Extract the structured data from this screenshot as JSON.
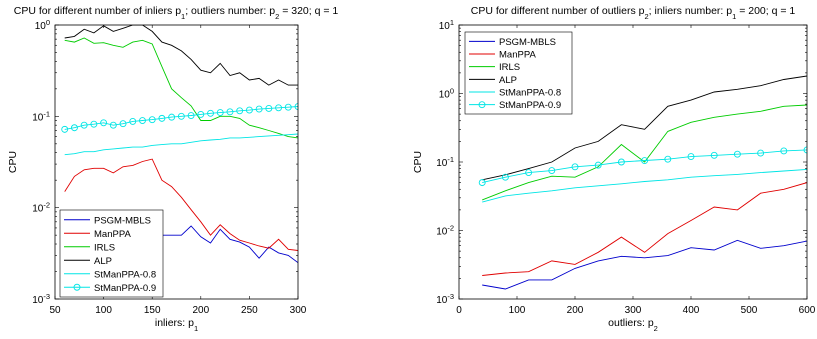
{
  "chart_data": [
    {
      "type": "line",
      "title_parts": [
        "CPU for different number of inliers p",
        "1",
        ";  outliers number: p",
        "2",
        " = 320;  q = 1"
      ],
      "xlabel_parts": [
        "inliers: p",
        "1"
      ],
      "ylabel": "CPU",
      "xlim": [
        50,
        300
      ],
      "ylim": [
        0.001,
        1
      ],
      "yscale": "log",
      "xticks": [
        50,
        100,
        150,
        200,
        250,
        300
      ],
      "yticks": [
        0.001,
        0.01,
        0.1,
        1
      ],
      "yticklabels": [
        {
          "base": "10",
          "exp": "-3"
        },
        {
          "base": "10",
          "exp": "-2"
        },
        {
          "base": "10",
          "exp": "-1"
        },
        {
          "base": "10",
          "exp": "0"
        }
      ],
      "legend_position": "bottom-left",
      "x": [
        60,
        70,
        80,
        90,
        100,
        110,
        120,
        130,
        140,
        150,
        160,
        170,
        180,
        190,
        200,
        210,
        220,
        230,
        240,
        250,
        260,
        270,
        280,
        290,
        300
      ],
      "series": [
        {
          "name": "PSGM-MBLS",
          "color": "#0000cc",
          "marker": "none",
          "values": [
            0.0055,
            0.0052,
            0.0051,
            0.0052,
            0.0052,
            0.0052,
            0.0051,
            0.0056,
            0.0048,
            0.0049,
            0.005,
            0.005,
            0.005,
            0.0063,
            0.0048,
            0.0041,
            0.0058,
            0.0045,
            0.0042,
            0.0037,
            0.0028,
            0.0037,
            0.0032,
            0.003,
            0.0025
          ]
        },
        {
          "name": "ManPPA",
          "color": "#e00000",
          "marker": "none",
          "values": [
            0.015,
            0.022,
            0.026,
            0.027,
            0.027,
            0.024,
            0.028,
            0.029,
            0.032,
            0.034,
            0.02,
            0.017,
            0.013,
            0.0095,
            0.007,
            0.005,
            0.0065,
            0.0052,
            0.0044,
            0.0041,
            0.0038,
            0.0036,
            0.0045,
            0.0035,
            0.0034
          ]
        },
        {
          "name": "IRLS",
          "color": "#00cc00",
          "marker": "none",
          "values": [
            0.68,
            0.65,
            0.72,
            0.63,
            0.64,
            0.6,
            0.57,
            0.65,
            0.68,
            0.62,
            0.35,
            0.2,
            0.16,
            0.13,
            0.09,
            0.09,
            0.1,
            0.1,
            0.095,
            0.08,
            0.075,
            0.07,
            0.065,
            0.06,
            0.058
          ]
        },
        {
          "name": "ALP",
          "color": "#000000",
          "marker": "none",
          "values": [
            0.72,
            0.75,
            0.9,
            0.82,
            0.98,
            0.85,
            0.92,
            1.0,
            1.0,
            0.85,
            0.65,
            0.6,
            0.52,
            0.42,
            0.32,
            0.3,
            0.38,
            0.28,
            0.3,
            0.25,
            0.26,
            0.22,
            0.25,
            0.22,
            0.22
          ]
        },
        {
          "name": "StManPPA-0.8",
          "color": "#00e5e5",
          "marker": "none",
          "values": [
            0.038,
            0.039,
            0.041,
            0.041,
            0.043,
            0.044,
            0.045,
            0.046,
            0.046,
            0.048,
            0.049,
            0.05,
            0.05,
            0.052,
            0.054,
            0.055,
            0.056,
            0.058,
            0.058,
            0.059,
            0.06,
            0.061,
            0.062,
            0.063,
            0.064
          ]
        },
        {
          "name": "StManPPA-0.9",
          "color": "#00e5e5",
          "marker": "circle",
          "values": [
            0.072,
            0.075,
            0.08,
            0.082,
            0.085,
            0.08,
            0.083,
            0.088,
            0.09,
            0.092,
            0.095,
            0.098,
            0.1,
            0.102,
            0.105,
            0.108,
            0.11,
            0.112,
            0.115,
            0.117,
            0.12,
            0.122,
            0.124,
            0.126,
            0.128
          ]
        }
      ]
    },
    {
      "type": "line",
      "title_parts": [
        "CPU for different  number of outliers p",
        "2",
        ";  inliers number: p",
        "1",
        " = 200;  q = 1"
      ],
      "xlabel_parts": [
        "outliers: p",
        "2"
      ],
      "ylabel": "CPU",
      "xlim": [
        0,
        600
      ],
      "ylim": [
        0.001,
        10
      ],
      "yscale": "log",
      "xticks": [
        0,
        100,
        200,
        300,
        400,
        500,
        600
      ],
      "yticks": [
        0.001,
        0.01,
        0.1,
        1,
        10
      ],
      "yticklabels": [
        {
          "base": "10",
          "exp": "-3"
        },
        {
          "base": "10",
          "exp": "-2"
        },
        {
          "base": "10",
          "exp": "-1"
        },
        {
          "base": "10",
          "exp": "0"
        },
        {
          "base": "10",
          "exp": "1"
        }
      ],
      "legend_position": "top-left",
      "x": [
        40,
        80,
        120,
        160,
        200,
        240,
        280,
        320,
        360,
        400,
        440,
        480,
        520,
        560,
        600
      ],
      "series": [
        {
          "name": "PSGM-MBLS",
          "color": "#0000cc",
          "marker": "none",
          "values": [
            0.0016,
            0.0014,
            0.0019,
            0.0019,
            0.0028,
            0.0036,
            0.0042,
            0.004,
            0.0043,
            0.0056,
            0.0052,
            0.0072,
            0.0055,
            0.006,
            0.007
          ]
        },
        {
          "name": "ManPPA",
          "color": "#e00000",
          "marker": "none",
          "values": [
            0.0022,
            0.0024,
            0.0025,
            0.0036,
            0.0032,
            0.0048,
            0.008,
            0.0048,
            0.009,
            0.014,
            0.022,
            0.02,
            0.035,
            0.04,
            0.05
          ]
        },
        {
          "name": "IRLS",
          "color": "#00cc00",
          "marker": "none",
          "values": [
            0.028,
            0.038,
            0.05,
            0.062,
            0.06,
            0.085,
            0.18,
            0.1,
            0.28,
            0.38,
            0.45,
            0.5,
            0.55,
            0.65,
            0.68
          ]
        },
        {
          "name": "ALP",
          "color": "#000000",
          "marker": "none",
          "values": [
            0.055,
            0.065,
            0.08,
            0.1,
            0.16,
            0.2,
            0.35,
            0.3,
            0.65,
            0.8,
            1.05,
            1.15,
            1.3,
            1.6,
            1.8
          ]
        },
        {
          "name": "StManPPA-0.8",
          "color": "#00e5e5",
          "marker": "none",
          "values": [
            0.026,
            0.032,
            0.035,
            0.038,
            0.042,
            0.045,
            0.048,
            0.052,
            0.055,
            0.06,
            0.063,
            0.066,
            0.07,
            0.074,
            0.078
          ]
        },
        {
          "name": "StManPPA-0.9",
          "color": "#00e5e5",
          "marker": "circle",
          "values": [
            0.05,
            0.06,
            0.07,
            0.075,
            0.085,
            0.09,
            0.1,
            0.105,
            0.11,
            0.12,
            0.125,
            0.13,
            0.135,
            0.145,
            0.15
          ]
        }
      ]
    }
  ]
}
